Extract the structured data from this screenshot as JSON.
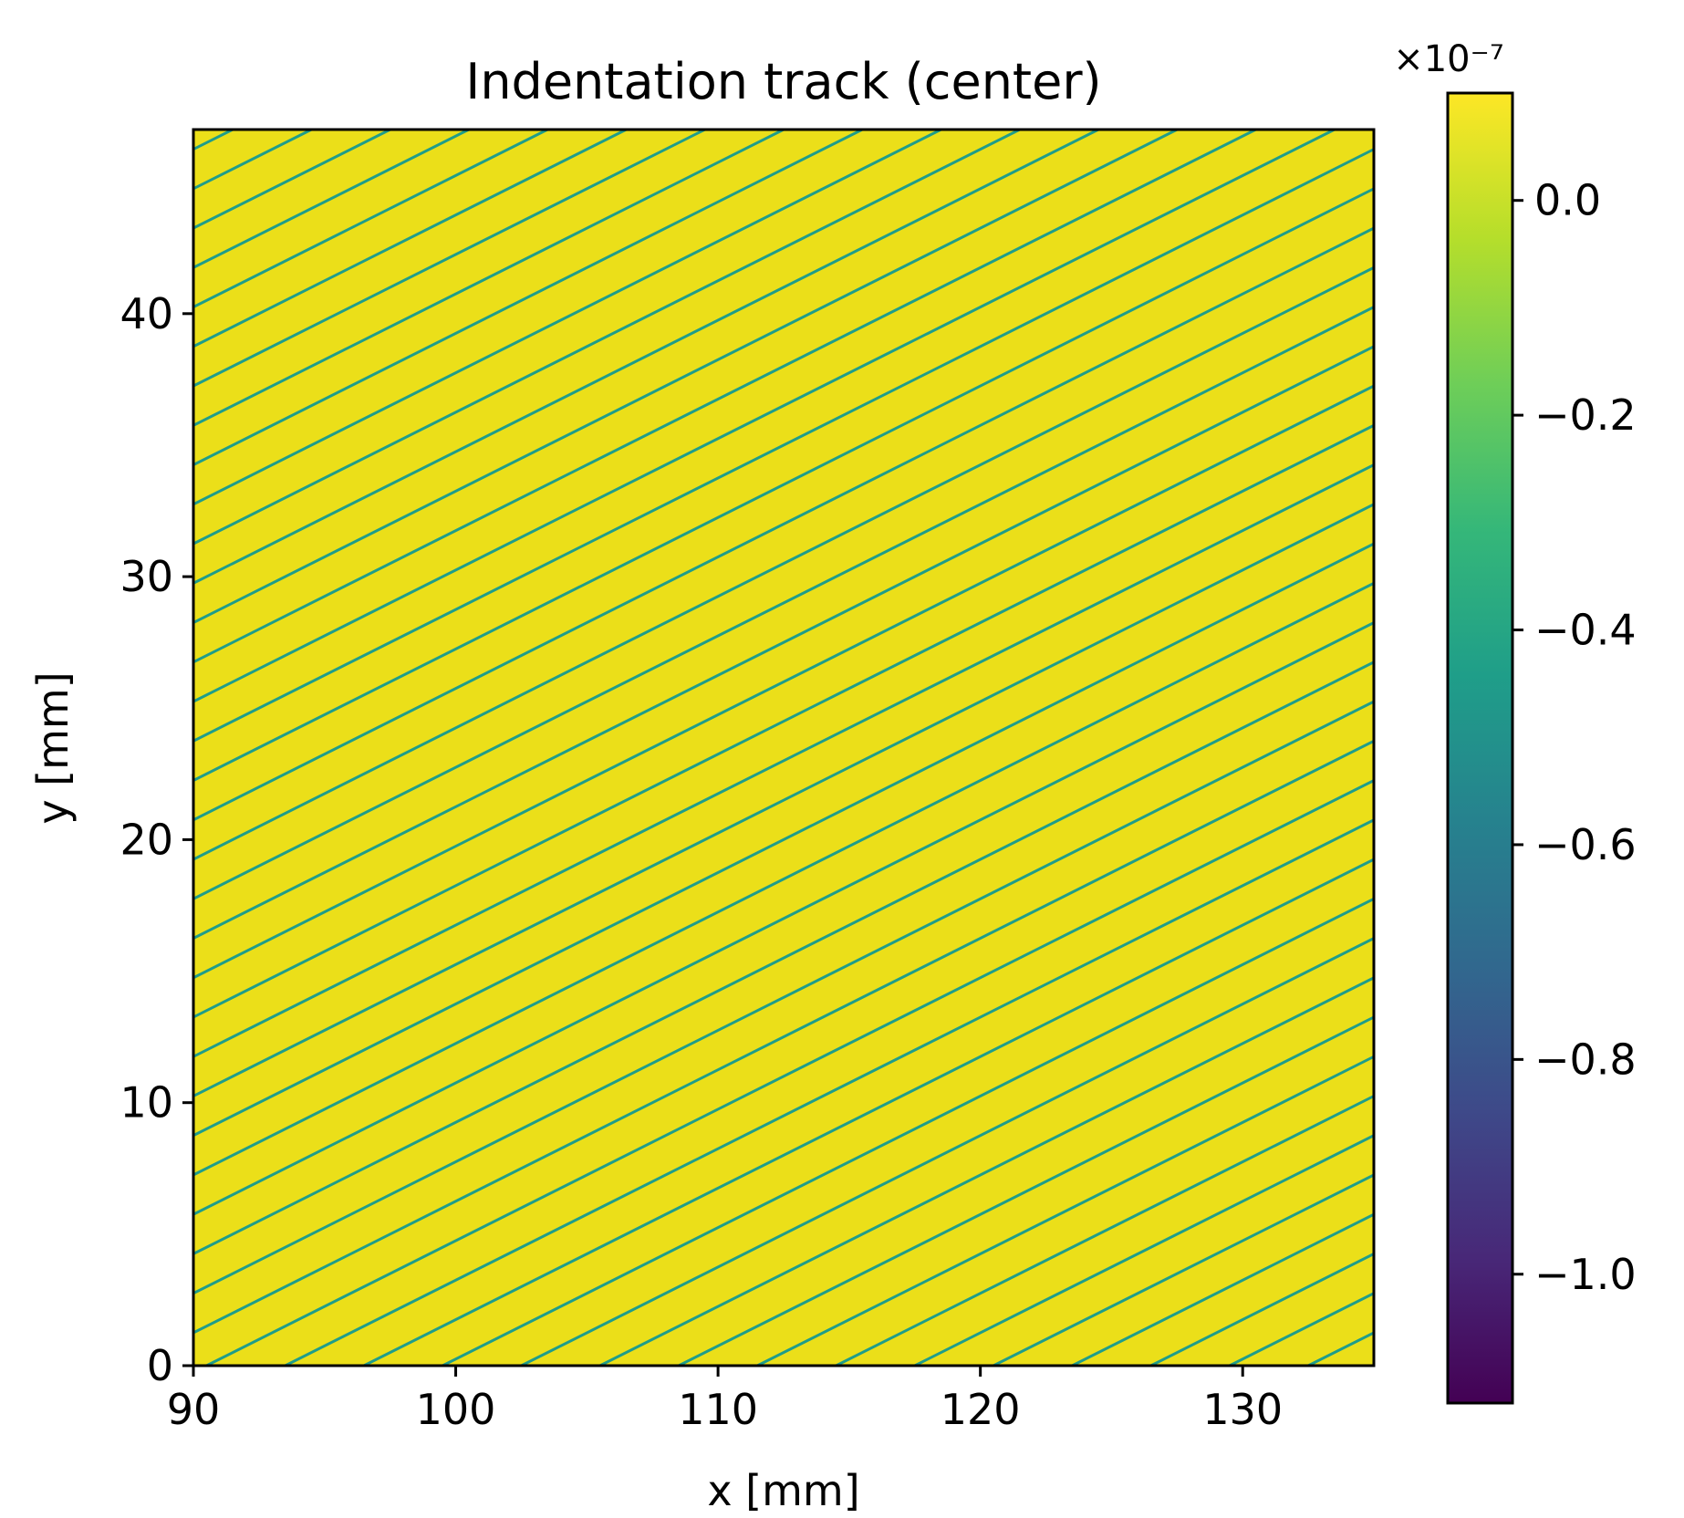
{
  "chart_data": {
    "type": "heatmap",
    "title": "Indentation track (center)",
    "xlabel": "x [mm]",
    "ylabel": "y [mm]",
    "xlim": [
      90,
      135
    ],
    "ylim": [
      0,
      47
    ],
    "x_ticks": [
      90,
      100,
      110,
      120,
      130
    ],
    "x_tick_labels": [
      "90",
      "100",
      "110",
      "120",
      "130"
    ],
    "y_ticks": [
      0,
      10,
      20,
      30,
      40
    ],
    "y_tick_labels": [
      "0",
      "10",
      "20",
      "30",
      "40"
    ],
    "grid": false,
    "colormap": "viridis",
    "colorbar": {
      "range": [
        -1.12,
        0.1
      ],
      "ticks": [
        0.0,
        -0.2,
        -0.4,
        -0.6,
        -0.8,
        -1.0
      ],
      "tick_labels": [
        "0.0",
        "−0.2",
        "−0.4",
        "−0.6",
        "−0.8",
        "−1.0"
      ],
      "offset_text": "×10⁻⁷",
      "scale_exponent": -7
    },
    "field": {
      "background_value": 0.1,
      "track_value": -0.5,
      "track_slope": 0.5,
      "track_spacing_x": 3.0,
      "track_anchor_x": 90.5
    }
  },
  "colors": {
    "background": "#ffffff",
    "field_yellow": "#ebdf19",
    "track_line": "#1f9d8a",
    "axis": "#000000",
    "viridis_stops": [
      "#440154",
      "#482878",
      "#3e4989",
      "#31688e",
      "#26828e",
      "#1f9e89",
      "#35b779",
      "#6ece58",
      "#b5de2b",
      "#fde725"
    ]
  }
}
